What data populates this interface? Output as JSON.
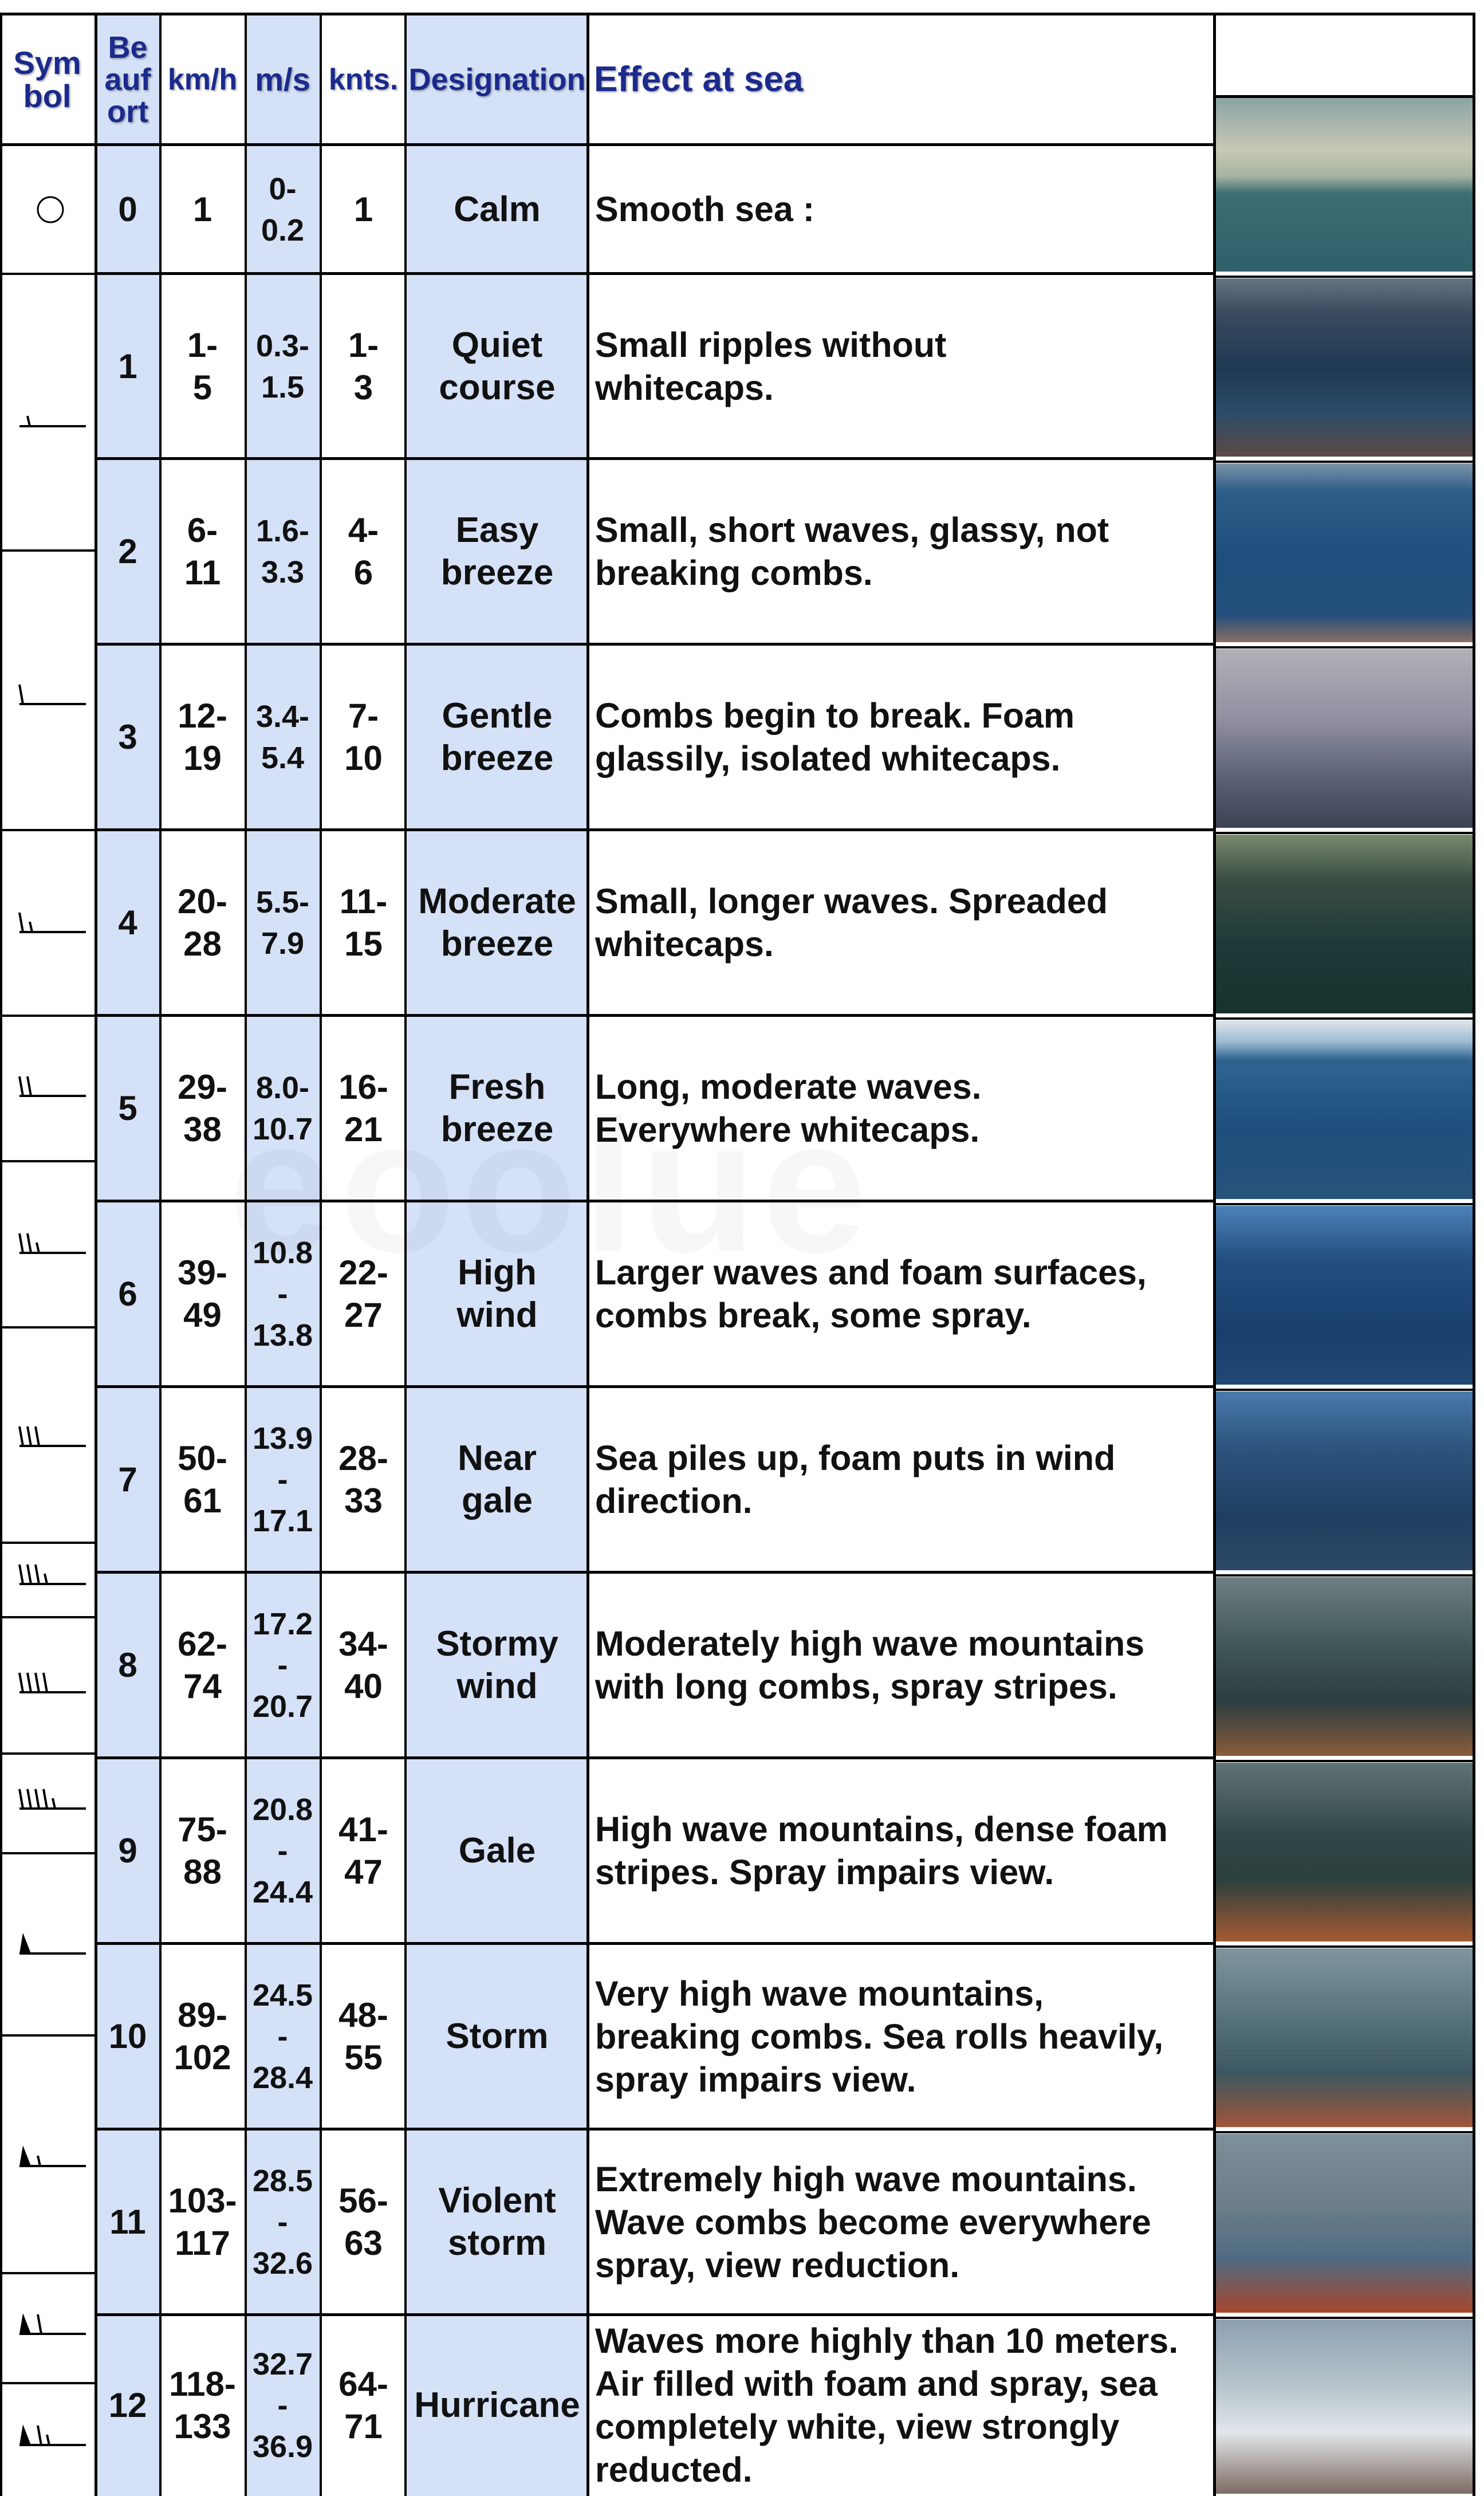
{
  "headers": {
    "symbol": "Sym\nbol",
    "beaufort": "Be\nauf\nort",
    "kmh": "km/h",
    "ms": "m/s",
    "knots": "knts.",
    "designation": "Designation",
    "effect": "Effect at sea"
  },
  "colors": {
    "header_text": "#1b2a8c",
    "highlight_column": "#d4e1f7",
    "grid": "#000000"
  },
  "rows": [
    {
      "beaufort": "0",
      "kmh": "1",
      "ms": "0-\n0.2",
      "knots": "1",
      "designation": "Calm",
      "effect": [
        "Smooth sea :"
      ],
      "photo": "calm-sea-photo"
    },
    {
      "beaufort": "1",
      "kmh": "1-\n5",
      "ms": "0.3-\n1.5",
      "knots": "1-\n3",
      "designation": "Quiet\ncourse",
      "effect": [
        "Small ripples without",
        "whitecaps."
      ],
      "photo": "ripples-photo"
    },
    {
      "beaufort": "2",
      "kmh": "6-\n11",
      "ms": "1.6-\n3.3",
      "knots": "4-\n6",
      "designation": "Easy\nbreeze",
      "effect": [
        "Small, short waves, glassy, not",
        "breaking combs."
      ],
      "photo": "short-waves-photo"
    },
    {
      "beaufort": "3",
      "kmh": "12-\n19",
      "ms": "3.4-\n5.4",
      "knots": "7-\n10",
      "designation": "Gentle\nbreeze",
      "effect": [
        "Combs begin to break. Foam",
        "glassily, isolated whitecaps."
      ],
      "photo": "gentle-breeze-photo"
    },
    {
      "beaufort": "4",
      "kmh": "20-\n28",
      "ms": "5.5-\n7.9",
      "knots": "11-\n15",
      "designation": "Moderate\nbreeze",
      "effect": [
        "Small, longer waves. Spreaded",
        "whitecaps."
      ],
      "photo": "moderate-breeze-photo"
    },
    {
      "beaufort": "5",
      "kmh": "29-\n38",
      "ms": "8.0-\n10.7",
      "knots": "16-\n21",
      "designation": "Fresh\nbreeze",
      "effect": [
        "Long, moderate waves.",
        "Everywhere whitecaps."
      ],
      "photo": "fresh-breeze-photo"
    },
    {
      "beaufort": "6",
      "kmh": "39-\n49",
      "ms": "10.8\n-\n13.8",
      "knots": "22-\n27",
      "designation": "High\nwind",
      "effect": [
        "Larger waves and foam surfaces,",
        "combs break, some spray."
      ],
      "photo": "high-wind-photo"
    },
    {
      "beaufort": "7",
      "kmh": "50-\n61",
      "ms": "13.9\n-\n17.1",
      "knots": "28-\n33",
      "designation": "Near\ngale",
      "effect": [
        "Sea piles up, foam puts in wind",
        "direction."
      ],
      "photo": "near-gale-photo"
    },
    {
      "beaufort": "8",
      "kmh": "62-\n74",
      "ms": "17.2\n-\n20.7",
      "knots": "34-\n40",
      "designation": "Stormy\nwind",
      "effect": [
        "Moderately high wave mountains",
        "with long combs, spray stripes."
      ],
      "photo": "stormy-wind-photo"
    },
    {
      "beaufort": "9",
      "kmh": "75-\n88",
      "ms": "20.8\n-\n24.4",
      "knots": "41-\n47",
      "designation": "Gale",
      "effect": [
        "High wave mountains, dense foam",
        "stripes. Spray impairs view."
      ],
      "photo": "gale-photo"
    },
    {
      "beaufort": "10",
      "kmh": "89-\n102",
      "ms": "24.5\n-\n28.4",
      "knots": "48-\n55",
      "designation": "Storm",
      "effect": [
        "Very high wave mountains,",
        "breaking combs. Sea rolls heavily,",
        "spray impairs view."
      ],
      "photo": "storm-photo"
    },
    {
      "beaufort": "11",
      "kmh": "103-\n117",
      "ms": "28.5\n-\n32.6",
      "knots": "56-\n63",
      "designation": "Violent\nstorm",
      "effect": [
        "Extremely high wave mountains.",
        "Wave combs become everywhere",
        "spray, view reduction."
      ],
      "photo": "violent-storm-photo"
    },
    {
      "beaufort": "12",
      "kmh": "118-\n133",
      "ms": "32.7\n-\n36.9",
      "knots": "64-\n71",
      "designation": "Hurricane",
      "effect": [
        "Waves more highly than 10 meters.",
        "Air filled with foam and spray, sea",
        "completely white, view strongly",
        "reducted."
      ],
      "photo": "hurricane-photo"
    }
  ],
  "symbols": [
    {
      "icon": "calm-circle-icon"
    },
    {
      "icon": "wind-barb-half-icon"
    },
    {
      "icon": "wind-barb-1-icon"
    },
    {
      "icon": "wind-barb-1-half-icon"
    },
    {
      "icon": "wind-barb-2-icon"
    },
    {
      "icon": "wind-barb-2-half-icon"
    },
    {
      "icon": "wind-barb-3-icon"
    },
    {
      "icon": "wind-barb-3-half-icon"
    },
    {
      "icon": "wind-barb-4-icon"
    },
    {
      "icon": "wind-barb-4-half-icon"
    },
    {
      "icon": "wind-pennant-icon"
    },
    {
      "icon": "wind-pennant-half-icon"
    },
    {
      "icon": "wind-pennant-1-icon"
    },
    {
      "icon": "wind-pennant-1-half-icon"
    },
    {
      "icon": "wind-pennant-2-icon"
    }
  ]
}
